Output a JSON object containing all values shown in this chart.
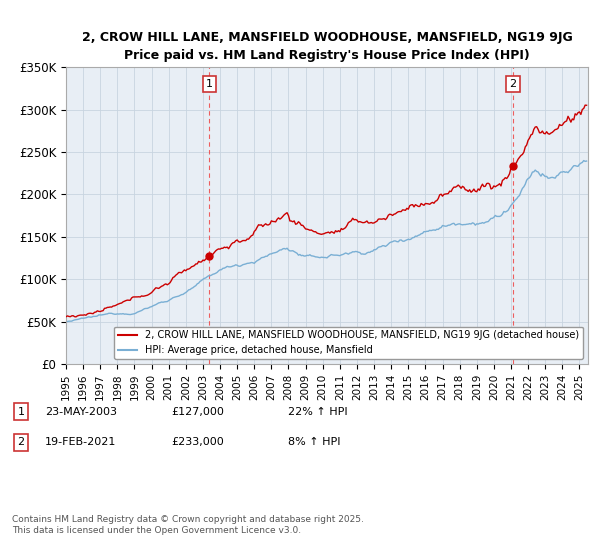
{
  "title_line1": "2, CROW HILL LANE, MANSFIELD WOODHOUSE, MANSFIELD, NG19 9JG",
  "title_line2": "Price paid vs. HM Land Registry's House Price Index (HPI)",
  "ylim": [
    0,
    350000
  ],
  "yticks": [
    0,
    50000,
    100000,
    150000,
    200000,
    250000,
    300000,
    350000
  ],
  "ytick_labels": [
    "£0",
    "£50K",
    "£100K",
    "£150K",
    "£200K",
    "£250K",
    "£300K",
    "£350K"
  ],
  "xlim_start": 1995.0,
  "xlim_end": 2025.5,
  "sale1_date": 2003.38,
  "sale1_price": 127000,
  "sale1_label": "1",
  "sale1_info": "23-MAY-2003",
  "sale1_price_str": "£127,000",
  "sale1_hpi": "22% ↑ HPI",
  "sale2_date": 2021.12,
  "sale2_price": 233000,
  "sale2_label": "2",
  "sale2_info": "19-FEB-2021",
  "sale2_price_str": "£233,000",
  "sale2_hpi": "8% ↑ HPI",
  "line_color_property": "#cc0000",
  "line_color_hpi": "#7aafd4",
  "chart_bg": "#e8eef5",
  "grid_color": "#c8d4e0",
  "background_color": "#ffffff",
  "sale_marker_color": "#cc0000",
  "vline_color": "#ee4444",
  "legend_label_property": "2, CROW HILL LANE, MANSFIELD WOODHOUSE, MANSFIELD, NG19 9JG (detached house)",
  "legend_label_hpi": "HPI: Average price, detached house, Mansfield",
  "footer": "Contains HM Land Registry data © Crown copyright and database right 2025.\nThis data is licensed under the Open Government Licence v3.0."
}
